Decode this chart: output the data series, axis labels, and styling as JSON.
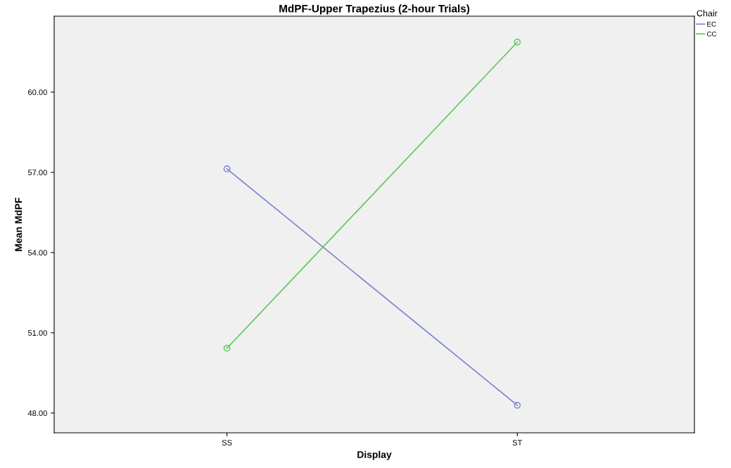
{
  "chart_data": {
    "type": "line",
    "title": "MdPF-Upper Trapezius (2-hour Trials)",
    "xlabel": "Display",
    "ylabel": "Mean MdPF",
    "legend_title": "Chair",
    "categories": [
      "SS",
      "ST"
    ],
    "series": [
      {
        "name": "EC",
        "color": "#7b82d4",
        "values": [
          57.13,
          48.29
        ]
      },
      {
        "name": "CC",
        "color": "#5cc85c",
        "values": [
          50.42,
          61.87
        ]
      }
    ],
    "ylim": [
      47.26,
      62.84
    ],
    "yticks": [
      {
        "value": 48,
        "label": "48.00"
      },
      {
        "value": 51,
        "label": "51.00"
      },
      {
        "value": 54,
        "label": "54.00"
      },
      {
        "value": 57,
        "label": "57.00"
      },
      {
        "value": 60,
        "label": "60.00"
      }
    ],
    "grid": false,
    "legend": "top right",
    "marker": "circle",
    "line_style": "solid"
  }
}
